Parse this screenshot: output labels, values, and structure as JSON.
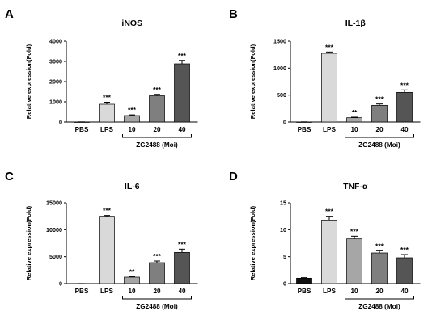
{
  "chart_data": [
    {
      "panel_label": "A",
      "type": "bar",
      "title": "iNOS",
      "ylabel": "Relative expression(Fold)",
      "categories": [
        "PBS",
        "LPS",
        "10",
        "20",
        "40"
      ],
      "values": [
        5,
        880,
        320,
        1300,
        2880
      ],
      "errors": [
        2,
        100,
        35,
        70,
        170
      ],
      "significance": [
        "",
        "***",
        "***",
        "***",
        "***"
      ],
      "colors": [
        "#111111",
        "#d9d9d9",
        "#a6a6a6",
        "#7f7f7f",
        "#555555"
      ],
      "ylim": [
        0,
        4000
      ],
      "yticks": [
        "0",
        "1000",
        "2000",
        "3000",
        "4000"
      ],
      "group_label": "ZG2488 (Moi)"
    },
    {
      "panel_label": "B",
      "type": "bar",
      "title": "IL-1β",
      "ylabel": "Relative expression(Fold)",
      "categories": [
        "PBS",
        "LPS",
        "10",
        "20",
        "40"
      ],
      "values": [
        2,
        1275,
        80,
        310,
        550
      ],
      "errors": [
        1,
        25,
        10,
        25,
        45
      ],
      "significance": [
        "",
        "***",
        "**",
        "***",
        "***"
      ],
      "colors": [
        "#111111",
        "#d9d9d9",
        "#a6a6a6",
        "#7f7f7f",
        "#555555"
      ],
      "ylim": [
        0,
        1500
      ],
      "yticks": [
        "0",
        "500",
        "1000",
        "1500"
      ],
      "group_label": "ZG2488 (Moi)"
    },
    {
      "panel_label": "C",
      "type": "bar",
      "title": "IL-6",
      "ylabel": "Relative expression(Fold)",
      "categories": [
        "PBS",
        "LPS",
        "10",
        "20",
        "40"
      ],
      "values": [
        10,
        12500,
        1200,
        3900,
        5800
      ],
      "errors": [
        5,
        150,
        100,
        300,
        600
      ],
      "significance": [
        "",
        "***",
        "**",
        "***",
        "***"
      ],
      "colors": [
        "#111111",
        "#d9d9d9",
        "#a6a6a6",
        "#7f7f7f",
        "#555555"
      ],
      "ylim": [
        0,
        15000
      ],
      "yticks": [
        "0",
        "5000",
        "10000",
        "15000"
      ],
      "group_label": "ZG2488 (Moi)"
    },
    {
      "panel_label": "D",
      "type": "bar",
      "title": "TNF-α",
      "ylabel": "Relative expression(Fold)",
      "categories": [
        "PBS",
        "LPS",
        "10",
        "20",
        "40"
      ],
      "values": [
        1.0,
        11.8,
        8.3,
        5.7,
        4.8
      ],
      "errors": [
        0.1,
        0.7,
        0.5,
        0.4,
        0.6
      ],
      "significance": [
        "",
        "***",
        "***",
        "***",
        "***"
      ],
      "colors": [
        "#111111",
        "#d9d9d9",
        "#a6a6a6",
        "#7f7f7f",
        "#555555"
      ],
      "ylim": [
        0,
        15
      ],
      "yticks": [
        "0",
        "5",
        "10",
        "15"
      ],
      "group_label": "ZG2488 (Moi)"
    }
  ]
}
